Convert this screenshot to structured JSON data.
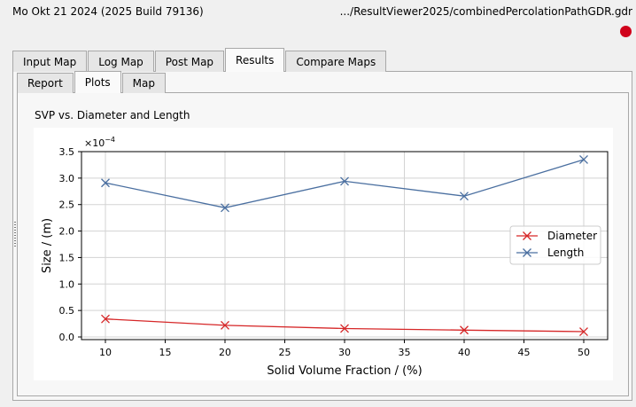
{
  "header": {
    "datetime": "Mo Okt 21 2024 (2025 Build 79136)",
    "file_path": ".../ResultViewer2025/combinedPercolationPathGDR.gdr",
    "status_color": "#d0021b"
  },
  "main_tabs": [
    {
      "label": "Input Map",
      "active": false
    },
    {
      "label": "Log Map",
      "active": false
    },
    {
      "label": "Post Map",
      "active": false
    },
    {
      "label": "Results",
      "active": true
    },
    {
      "label": "Compare Maps",
      "active": false
    }
  ],
  "sub_tabs": [
    {
      "label": "Report",
      "active": false
    },
    {
      "label": "Plots",
      "active": true
    },
    {
      "label": "Map",
      "active": false
    }
  ],
  "plot": {
    "title": "SVP vs. Diameter and Length"
  },
  "chart_data": {
    "type": "line",
    "x": [
      10,
      20,
      30,
      40,
      50
    ],
    "xlabel": "Solid Volume Fraction / (%)",
    "ylabel": "Size / (m)",
    "y_scale_label": "×10",
    "y_scale_exponent": "−4",
    "xlim": [
      8,
      52
    ],
    "ylim": [
      -0.05,
      3.5
    ],
    "x_ticks": [
      10,
      15,
      20,
      25,
      30,
      35,
      40,
      45,
      50
    ],
    "y_ticks": [
      0.0,
      0.5,
      1.0,
      1.5,
      2.0,
      2.5,
      3.0,
      3.5
    ],
    "grid": true,
    "legend_position": "right",
    "series": [
      {
        "name": "Diameter",
        "color": "#d62728",
        "marker": "x",
        "values": [
          0.34,
          0.22,
          0.16,
          0.13,
          0.1
        ]
      },
      {
        "name": "Length",
        "color": "#4a6fa0",
        "marker": "x",
        "values": [
          2.91,
          2.44,
          2.94,
          2.66,
          3.35
        ]
      }
    ]
  }
}
